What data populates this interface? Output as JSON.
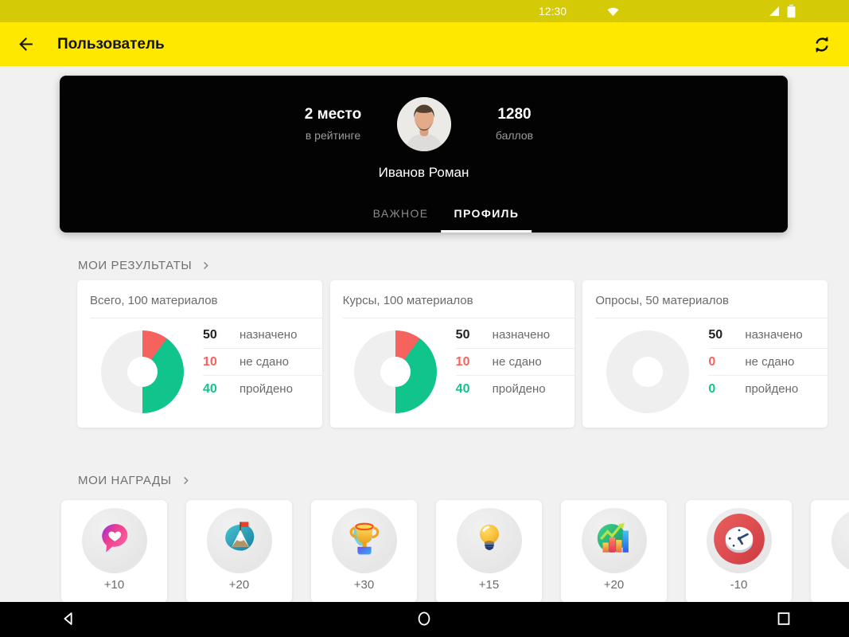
{
  "status_bar": {
    "time": "12:30",
    "icons": [
      "wifi-icon",
      "signal-icon",
      "battery-icon"
    ]
  },
  "app_bar": {
    "title": "Пользователь",
    "left_icon": "arrow-back-icon",
    "right_icon": "sync-icon"
  },
  "colors": {
    "status_bar": "#d5ca06",
    "app_bar": "#ffe800",
    "background": "#f1f1f2",
    "profile_card": "#030303",
    "accent_red": "#f6625d",
    "accent_green": "#10c48c",
    "donut_empty": "#efeff0",
    "number_black": "#212121"
  },
  "profile_card": {
    "rank": {
      "value": "2 место",
      "label": "в рейтинге"
    },
    "points": {
      "value": "1280",
      "label": "баллов"
    },
    "name": "Иванов Роман",
    "tabs": [
      {
        "id": "important",
        "label": "ВАЖНОЕ",
        "active": false
      },
      {
        "id": "profile",
        "label": "ПРОФИЛЬ",
        "active": true
      }
    ]
  },
  "results_section": {
    "header": "МОИ РЕЗУЛЬТАТЫ",
    "cards": [
      {
        "title": "Всего, 100 материалов",
        "legend": [
          {
            "value": "50",
            "label": "назначено",
            "color": "#212121"
          },
          {
            "value": "10",
            "label": "не сдано",
            "color": "#f6625d"
          },
          {
            "value": "40",
            "label": "пройдено",
            "color": "#10c48c"
          }
        ],
        "donut": [
          {
            "pct": 10,
            "color": "#f6625d"
          },
          {
            "pct": 40,
            "color": "#10c48c"
          },
          {
            "pct": 50,
            "color": "#efeff0"
          }
        ]
      },
      {
        "title": "Курсы, 100 материалов",
        "legend": [
          {
            "value": "50",
            "label": "назначено",
            "color": "#212121"
          },
          {
            "value": "10",
            "label": "не сдано",
            "color": "#f6625d"
          },
          {
            "value": "40",
            "label": "пройдено",
            "color": "#10c48c"
          }
        ],
        "donut": [
          {
            "pct": 10,
            "color": "#f6625d"
          },
          {
            "pct": 40,
            "color": "#10c48c"
          },
          {
            "pct": 50,
            "color": "#efeff0"
          }
        ]
      },
      {
        "title": "Опросы, 50 материалов",
        "legend": [
          {
            "value": "50",
            "label": "назначено",
            "color": "#212121"
          },
          {
            "value": "0",
            "label": "не сдано",
            "color": "#f6625d"
          },
          {
            "value": "0",
            "label": "пройдено",
            "color": "#10c48c"
          }
        ],
        "donut": [
          {
            "pct": 100,
            "color": "#efeff0"
          }
        ]
      }
    ]
  },
  "awards_section": {
    "header": "МОИ НАГРАДЫ",
    "items": [
      {
        "points": "+10",
        "icon": "heart-bubble-icon"
      },
      {
        "points": "+20",
        "icon": "mountain-flag-icon"
      },
      {
        "points": "+30",
        "icon": "trophy-icon"
      },
      {
        "points": "+15",
        "icon": "lightbulb-icon"
      },
      {
        "points": "+20",
        "icon": "growth-chart-icon"
      },
      {
        "points": "-10",
        "icon": "clock-icon"
      },
      {
        "points": "",
        "icon": "badge-partial-icon"
      }
    ]
  },
  "nav_bar": {
    "buttons": [
      {
        "id": "back",
        "icon": "nav-back-icon"
      },
      {
        "id": "home",
        "icon": "nav-home-icon"
      },
      {
        "id": "recents",
        "icon": "nav-recents-icon"
      }
    ]
  }
}
